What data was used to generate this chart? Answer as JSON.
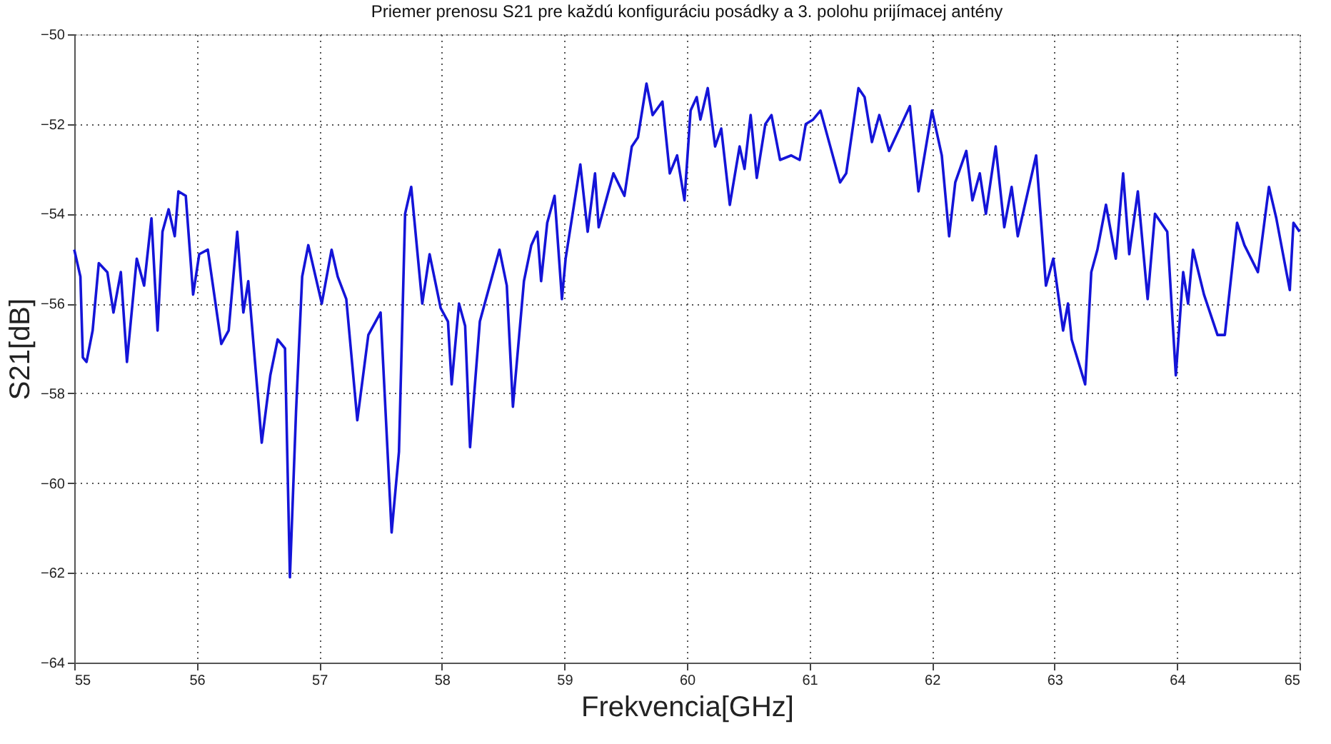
{
  "chart_data": {
    "type": "line",
    "title": "Priemer prenosu S21 pre každú konfiguráciu posádky a 3. polohu prijímacej antény",
    "xlabel": "Frekvencia[GHz]",
    "ylabel": "S21[dB]",
    "xlim": [
      55,
      65
    ],
    "xticks": [
      55,
      56,
      57,
      58,
      59,
      60,
      61,
      62,
      63,
      64,
      65
    ],
    "ylim": [
      -64,
      -50
    ],
    "yticks": [
      -64,
      -62,
      -60,
      -58,
      -56,
      -54,
      -52,
      -50
    ],
    "grid": true,
    "line_style": "solid",
    "marker": "none",
    "series": [
      {
        "color": "#1414d8",
        "x": [
          55.0,
          55.05,
          55.07,
          55.1,
          55.15,
          55.2,
          55.27,
          55.32,
          55.38,
          55.43,
          55.51,
          55.57,
          55.63,
          55.68,
          55.72,
          55.77,
          55.82,
          55.85,
          55.91,
          55.97,
          56.02,
          56.09,
          56.2,
          56.26,
          56.33,
          56.38,
          56.42,
          56.53,
          56.6,
          56.66,
          56.72,
          56.76,
          56.81,
          56.86,
          56.91,
          57.02,
          57.1,
          57.15,
          57.22,
          57.31,
          57.4,
          57.5,
          57.59,
          57.65,
          57.7,
          57.75,
          57.84,
          57.9,
          57.99,
          58.05,
          58.08,
          58.14,
          58.19,
          58.23,
          58.31,
          58.47,
          58.53,
          58.58,
          58.67,
          58.73,
          58.78,
          58.81,
          58.86,
          58.92,
          58.98,
          59.01,
          59.13,
          59.19,
          59.25,
          59.28,
          59.4,
          59.49,
          59.55,
          59.6,
          59.67,
          59.72,
          59.8,
          59.86,
          59.92,
          59.98,
          60.03,
          60.08,
          60.11,
          60.17,
          60.23,
          60.28,
          60.35,
          60.43,
          60.47,
          60.52,
          60.57,
          60.64,
          60.69,
          60.76,
          60.85,
          60.92,
          60.97,
          61.03,
          61.09,
          61.17,
          61.25,
          61.3,
          61.4,
          61.45,
          61.51,
          61.57,
          61.65,
          61.82,
          61.89,
          62.0,
          62.08,
          62.14,
          62.19,
          62.28,
          62.33,
          62.39,
          62.44,
          62.52,
          62.59,
          62.65,
          62.7,
          62.85,
          62.93,
          62.99,
          63.07,
          63.11,
          63.14,
          63.25,
          63.3,
          63.35,
          63.42,
          63.5,
          63.56,
          63.61,
          63.68,
          63.76,
          63.82,
          63.92,
          63.99,
          64.05,
          64.09,
          64.13,
          64.22,
          64.33,
          64.39,
          64.49,
          64.55,
          64.66,
          64.75,
          64.81,
          64.92,
          64.95,
          65.0
        ],
        "values": [
          -54.8,
          -55.4,
          -57.2,
          -57.3,
          -56.6,
          -55.1,
          -55.3,
          -56.2,
          -55.3,
          -57.3,
          -55.0,
          -55.6,
          -54.1,
          -56.6,
          -54.4,
          -53.9,
          -54.5,
          -53.5,
          -53.6,
          -55.8,
          -54.9,
          -54.8,
          -56.9,
          -56.6,
          -54.4,
          -56.2,
          -55.5,
          -59.1,
          -57.6,
          -56.8,
          -57.0,
          -62.1,
          -58.4,
          -55.4,
          -54.7,
          -56.0,
          -54.8,
          -55.4,
          -55.9,
          -58.6,
          -56.7,
          -56.2,
          -61.1,
          -59.3,
          -54.0,
          -53.4,
          -56.0,
          -54.9,
          -56.1,
          -56.4,
          -57.8,
          -56.0,
          -56.5,
          -59.2,
          -56.4,
          -54.8,
          -55.6,
          -58.3,
          -55.5,
          -54.7,
          -54.4,
          -55.5,
          -54.2,
          -53.6,
          -55.9,
          -55.0,
          -52.9,
          -54.4,
          -53.1,
          -54.3,
          -53.1,
          -53.6,
          -52.5,
          -52.3,
          -51.1,
          -51.8,
          -51.5,
          -53.1,
          -52.7,
          -53.7,
          -51.7,
          -51.4,
          -51.9,
          -51.2,
          -52.5,
          -52.1,
          -53.8,
          -52.5,
          -53.0,
          -51.8,
          -53.2,
          -52.0,
          -51.8,
          -52.8,
          -52.7,
          -52.8,
          -52.0,
          -51.9,
          -51.7,
          -52.5,
          -53.3,
          -53.1,
          -51.2,
          -51.4,
          -52.4,
          -51.8,
          -52.6,
          -51.6,
          -53.5,
          -51.7,
          -52.7,
          -54.5,
          -53.3,
          -52.6,
          -53.7,
          -53.1,
          -54.0,
          -52.5,
          -54.3,
          -53.4,
          -54.5,
          -52.7,
          -55.6,
          -55.0,
          -56.6,
          -56.0,
          -56.8,
          -57.8,
          -55.3,
          -54.8,
          -53.8,
          -55.0,
          -53.1,
          -54.9,
          -53.5,
          -55.9,
          -54.0,
          -54.4,
          -57.6,
          -55.3,
          -56.0,
          -54.8,
          -55.8,
          -56.7,
          -56.7,
          -54.2,
          -54.7,
          -55.3,
          -53.4,
          -54.1,
          -55.7,
          -54.2,
          -54.4
        ]
      }
    ]
  }
}
